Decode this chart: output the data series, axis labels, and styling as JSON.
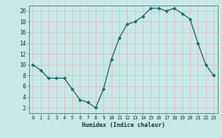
{
  "x": [
    0,
    1,
    2,
    3,
    4,
    5,
    6,
    7,
    8,
    9,
    10,
    11,
    12,
    13,
    14,
    15,
    16,
    17,
    18,
    19,
    20,
    21,
    22,
    23
  ],
  "y": [
    10,
    9,
    7.5,
    7.5,
    7.5,
    5.5,
    3.5,
    3,
    2,
    5.5,
    11,
    15,
    17.5,
    18,
    19,
    20.5,
    20.5,
    20,
    20.5,
    19.5,
    18.5,
    14,
    10,
    8
  ],
  "line_color": "#1a6b6b",
  "marker_color": "#1a6b6b",
  "bg_color": "#c8e8e8",
  "grid_color": "#e8b0b0",
  "xlabel": "Humidex (Indice chaleur)",
  "ylim": [
    1,
    21
  ],
  "xlim": [
    -0.5,
    23.5
  ],
  "yticks": [
    2,
    4,
    6,
    8,
    10,
    12,
    14,
    16,
    18,
    20
  ],
  "xticks": [
    0,
    1,
    2,
    3,
    4,
    5,
    6,
    7,
    8,
    9,
    10,
    11,
    12,
    13,
    14,
    15,
    16,
    17,
    18,
    19,
    20,
    21,
    22,
    23
  ],
  "xtick_labels": [
    "0",
    "1",
    "2",
    "3",
    "4",
    "5",
    "6",
    "7",
    "8",
    "9",
    "10",
    "11",
    "12",
    "13",
    "14",
    "15",
    "16",
    "17",
    "18",
    "19",
    "20",
    "21",
    "22",
    "23"
  ],
  "font_color": "#1a3333",
  "line_width": 1.0,
  "marker_size": 2.5
}
